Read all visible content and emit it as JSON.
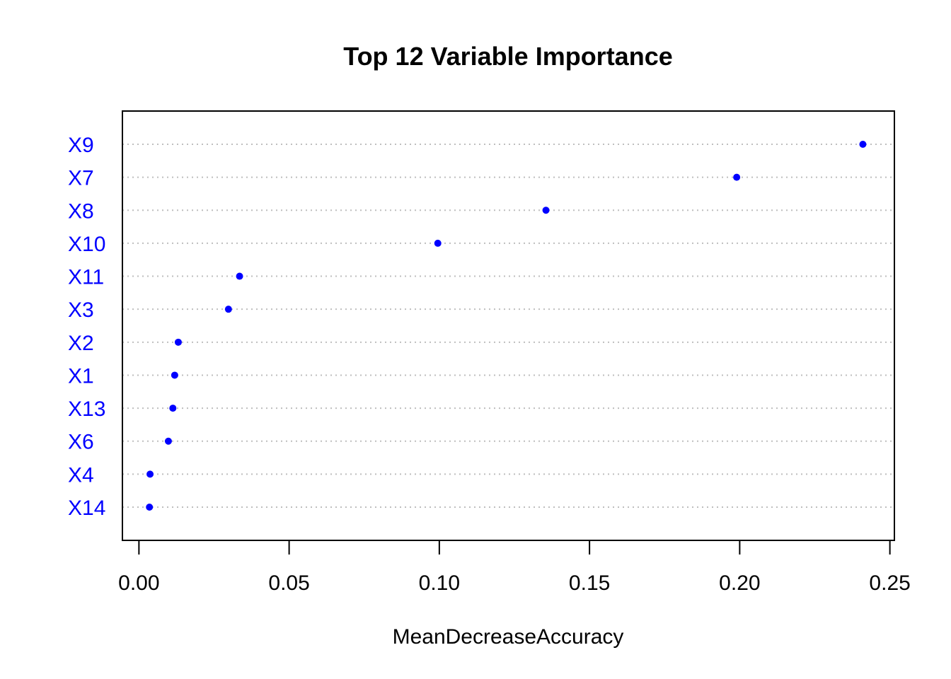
{
  "chart_data": {
    "type": "scatter",
    "title": "Top 12 Variable Importance",
    "xlabel": "MeanDecreaseAccuracy",
    "ylabel": "",
    "categories": [
      "X9",
      "X7",
      "X8",
      "X10",
      "X11",
      "X3",
      "X2",
      "X1",
      "X13",
      "X6",
      "X4",
      "X14"
    ],
    "values": [
      0.241,
      0.199,
      0.1355,
      0.0995,
      0.0335,
      0.0298,
      0.0131,
      0.0119,
      0.0113,
      0.0098,
      0.0037,
      0.0035
    ],
    "xlim": [
      -0.0055,
      0.2515
    ],
    "xticks": [
      0.0,
      0.05,
      0.1,
      0.15,
      0.2,
      0.25
    ],
    "xtick_labels": [
      "0.00",
      "0.05",
      "0.10",
      "0.15",
      "0.20",
      "0.25"
    ],
    "grid": "dotted horizontal guide lines",
    "point_color": "#0000ff",
    "label_color": "#0000ff",
    "guide_color": "#bebebe",
    "axis_color": "#000000"
  }
}
